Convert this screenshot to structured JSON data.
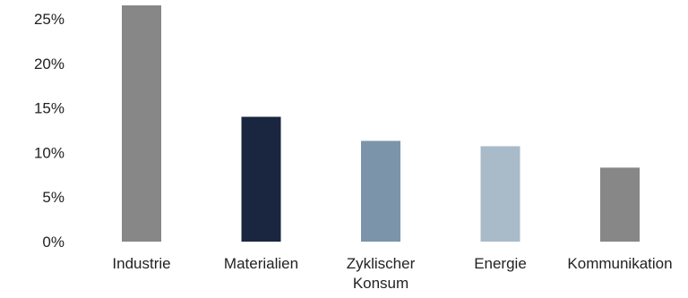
{
  "chart_data": {
    "type": "bar",
    "title": "",
    "xlabel": "",
    "ylabel": "",
    "categories": [
      [
        "Industrie"
      ],
      [
        "Materialien"
      ],
      [
        "Zyklischer",
        "Konsum"
      ],
      [
        "Energie"
      ],
      [
        "Kommunikation"
      ]
    ],
    "values": [
      26.5,
      14.0,
      11.3,
      10.7,
      8.3
    ],
    "ylim": [
      0,
      26.5
    ],
    "yticks": [
      0,
      5,
      10,
      15,
      20,
      25
    ],
    "ytick_labels": [
      "0%",
      "5%",
      "10%",
      "15%",
      "20%",
      "25%"
    ],
    "grid": false,
    "legend": "none",
    "colors": [
      "#878787",
      "#1a2540",
      "#7b94aa",
      "#a9bac9",
      "#878787"
    ]
  }
}
